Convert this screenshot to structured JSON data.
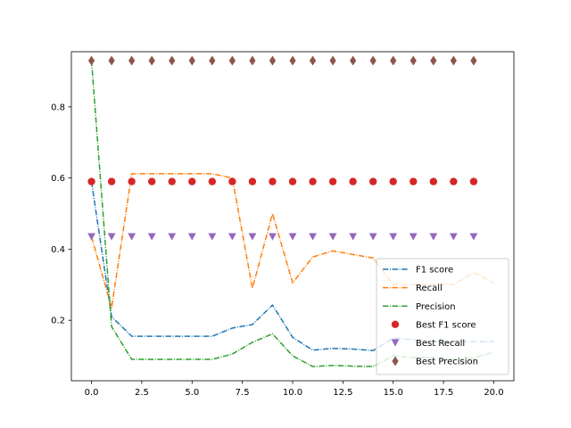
{
  "chart_data": {
    "type": "line",
    "title": "",
    "xlabel": "",
    "ylabel": "",
    "xlim": [
      -1.0,
      21.0
    ],
    "ylim": [
      0.03,
      0.955
    ],
    "x_ticks": [
      0.0,
      2.5,
      5.0,
      7.5,
      10.0,
      12.5,
      15.0,
      17.5,
      20.0
    ],
    "x_tick_labels": [
      "0.0",
      "2.5",
      "5.0",
      "7.5",
      "10.0",
      "12.5",
      "15.0",
      "17.5",
      "20.0"
    ],
    "y_ticks": [
      0.2,
      0.4,
      0.6,
      0.8
    ],
    "y_tick_labels": [
      "0.2",
      "0.4",
      "0.6",
      "0.8"
    ],
    "grid": false,
    "legend_position": "lower-right",
    "series": [
      {
        "name": "F1 score",
        "kind": "line",
        "style": "dashdot",
        "color": "#1f77b4",
        "x": [
          0,
          1,
          2,
          3,
          4,
          5,
          6,
          7,
          8,
          9,
          10,
          11,
          12,
          13,
          14,
          15,
          16,
          17,
          18,
          19,
          20
        ],
        "values": [
          0.59,
          0.21,
          0.155,
          0.155,
          0.155,
          0.155,
          0.155,
          0.178,
          0.188,
          0.243,
          0.152,
          0.116,
          0.121,
          0.119,
          0.115,
          0.15,
          0.145,
          0.14,
          0.14,
          0.14,
          0.14
        ]
      },
      {
        "name": "Recall",
        "kind": "line",
        "style": "dashdot",
        "color": "#ff7f0e",
        "x": [
          0,
          1,
          2,
          3,
          4,
          5,
          6,
          7,
          8,
          9,
          10,
          11,
          12,
          13,
          14,
          15,
          16,
          17,
          18,
          19,
          20
        ],
        "values": [
          0.435,
          0.235,
          0.612,
          0.612,
          0.612,
          0.612,
          0.612,
          0.6,
          0.29,
          0.5,
          0.305,
          0.378,
          0.395,
          0.385,
          0.375,
          0.3,
          0.3,
          0.3,
          0.3,
          0.335,
          0.305
        ]
      },
      {
        "name": "Precision",
        "kind": "line",
        "style": "dashdot",
        "color": "#2ca02c",
        "x": [
          0,
          1,
          2,
          3,
          4,
          5,
          6,
          7,
          8,
          9,
          10,
          11,
          12,
          13,
          14,
          15,
          16,
          17,
          18,
          19,
          20
        ],
        "values": [
          0.93,
          0.182,
          0.09,
          0.09,
          0.09,
          0.09,
          0.09,
          0.105,
          0.138,
          0.162,
          0.1,
          0.07,
          0.073,
          0.071,
          0.07,
          0.1,
          0.095,
          0.095,
          0.09,
          0.095,
          0.11
        ]
      },
      {
        "name": "Best F1 score",
        "kind": "scatter",
        "marker": "circle",
        "color": "#d62728",
        "x": [
          0,
          1,
          2,
          3,
          4,
          5,
          6,
          7,
          8,
          9,
          10,
          11,
          12,
          13,
          14,
          15,
          16,
          17,
          18,
          19
        ],
        "values": [
          0.59,
          0.59,
          0.59,
          0.59,
          0.59,
          0.59,
          0.59,
          0.59,
          0.59,
          0.59,
          0.59,
          0.59,
          0.59,
          0.59,
          0.59,
          0.59,
          0.59,
          0.59,
          0.59,
          0.59
        ]
      },
      {
        "name": "Best Recall",
        "kind": "scatter",
        "marker": "triangle-down",
        "color": "#9467bd",
        "x": [
          0,
          1,
          2,
          3,
          4,
          5,
          6,
          7,
          8,
          9,
          10,
          11,
          12,
          13,
          14,
          15,
          16,
          17,
          18,
          19
        ],
        "values": [
          0.435,
          0.435,
          0.435,
          0.435,
          0.435,
          0.435,
          0.435,
          0.435,
          0.435,
          0.435,
          0.435,
          0.435,
          0.435,
          0.435,
          0.435,
          0.435,
          0.435,
          0.435,
          0.435,
          0.435
        ]
      },
      {
        "name": "Best Precision",
        "kind": "scatter",
        "marker": "diamond",
        "color": "#8c564b",
        "x": [
          0,
          1,
          2,
          3,
          4,
          5,
          6,
          7,
          8,
          9,
          10,
          11,
          12,
          13,
          14,
          15,
          16,
          17,
          18,
          19
        ],
        "values": [
          0.93,
          0.93,
          0.93,
          0.93,
          0.93,
          0.93,
          0.93,
          0.93,
          0.93,
          0.93,
          0.93,
          0.93,
          0.93,
          0.93,
          0.93,
          0.93,
          0.93,
          0.93,
          0.93,
          0.93
        ]
      }
    ]
  }
}
